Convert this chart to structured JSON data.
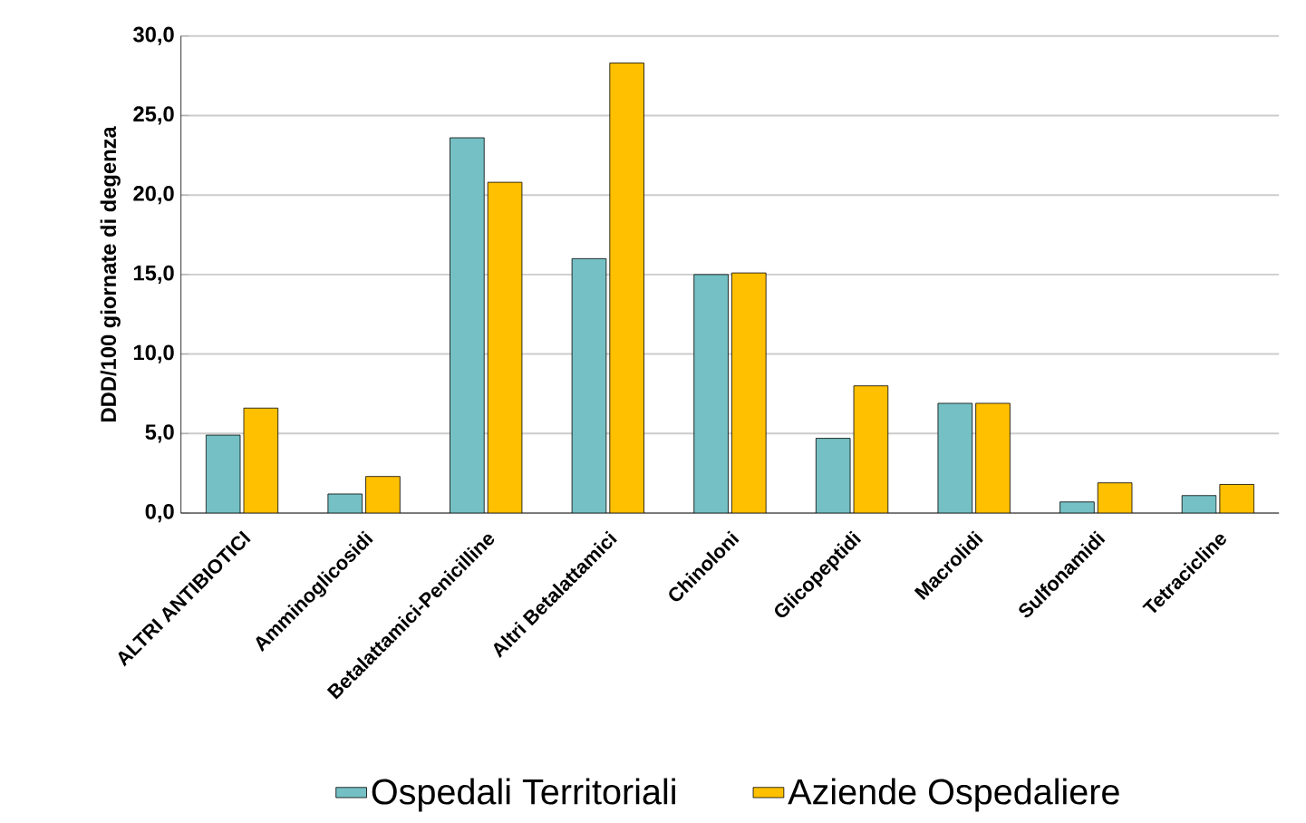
{
  "chart_data": {
    "type": "bar",
    "ylabel": "DDD/100 giornate di degenza",
    "categories": [
      "ALTRI ANTIBIOTICI",
      "Amminoglicosidi",
      "Betalattamici-Penicilline",
      "Altri Betalattamici",
      "Chinoloni",
      "Glicopeptidi",
      "Macrolidi",
      "Sulfonamidi",
      "Tetracicline"
    ],
    "series": [
      {
        "name": "Ospedali Territoriali",
        "color": "#74c0c4",
        "values": [
          4.9,
          1.2,
          23.6,
          16.0,
          15.0,
          4.7,
          6.9,
          0.7,
          1.1
        ]
      },
      {
        "name": "Aziende Ospedaliere",
        "color": "#ffc000",
        "values": [
          6.6,
          2.3,
          20.8,
          28.3,
          15.1,
          8.0,
          6.9,
          1.9,
          1.8
        ]
      }
    ],
    "ylim": [
      0,
      30
    ],
    "yticks": [
      {
        "value": 0,
        "label": "0,0"
      },
      {
        "value": 5,
        "label": "5,0"
      },
      {
        "value": 10,
        "label": "10,0"
      },
      {
        "value": 15,
        "label": "15,0"
      },
      {
        "value": 20,
        "label": "20,0"
      },
      {
        "value": 25,
        "label": "25,0"
      },
      {
        "value": 30,
        "label": "30,0"
      }
    ],
    "grid": "y",
    "legend": "bottom"
  }
}
